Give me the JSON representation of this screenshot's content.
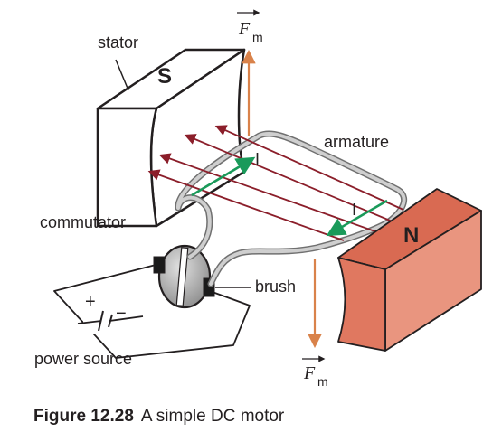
{
  "labels": {
    "stator": "stator",
    "armature": "armature",
    "commutator": "commutator",
    "brush": "brush",
    "power_source": "power source",
    "pole_s": "S",
    "pole_n": "N",
    "current_top": "I",
    "current_bottom": "I",
    "plus": "+",
    "minus": "−",
    "force_symbol": "F",
    "force_subscript": "m"
  },
  "caption": {
    "number": "Figure 12.28",
    "text": "A simple DC motor"
  },
  "colors": {
    "stator_s": "#ffffff",
    "magnet_n_front": "#e07860",
    "magnet_n_top": "#d96a52",
    "field_lines": "#8b1e2a",
    "current_arrows": "#1a9a5a",
    "force_arrows": "#d9824a",
    "wire": "#a0a0a0",
    "commutator": "#a8a8a8",
    "brush": "#1a1a1a"
  },
  "icons": {
    "force_vector": "arrow-over-letter",
    "battery": "battery-cell-symbol"
  }
}
